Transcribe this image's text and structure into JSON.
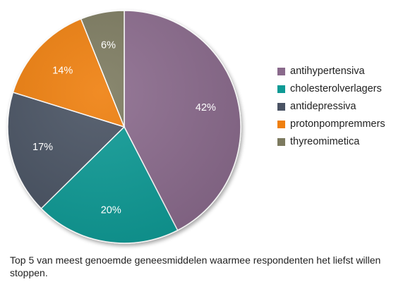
{
  "chart_data": {
    "type": "pie",
    "categories": [
      "antihypertensiva",
      "cholesterolverlagers",
      "antidepressiva",
      "protonpompremmers",
      "thyreomimetica"
    ],
    "values": [
      42,
      20,
      17,
      14,
      6
    ],
    "value_labels": [
      "42%",
      "20%",
      "17%",
      "14%",
      "6%"
    ],
    "colors": [
      "#8a6a8c",
      "#0e9a95",
      "#4a5364",
      "#ef7f0e",
      "#7c7a5f"
    ],
    "start_angle": "12 o'clock",
    "direction": "clockwise",
    "legend_placement": "right"
  },
  "caption": "Top 5 van meest genoemde geneesmiddelen waarmee respondenten het liefst willen stoppen."
}
